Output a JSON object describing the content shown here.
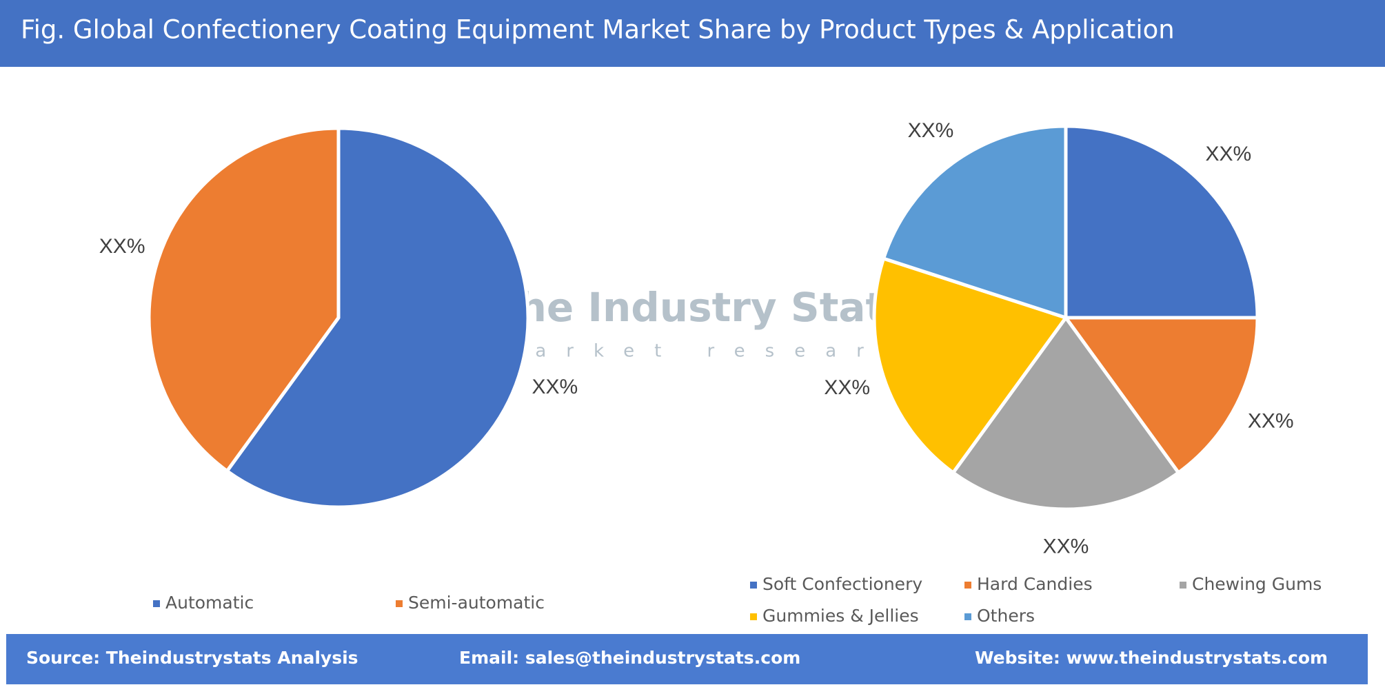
{
  "header": {
    "title": "Fig. Global Confectionery Coating Equipment Market Share by Product Types & Application"
  },
  "chart_data": [
    {
      "type": "pie",
      "categories": [
        "Automatic",
        "Semi-automatic"
      ],
      "values": [
        60,
        40
      ],
      "value_labels": [
        "XX%",
        "XX%"
      ],
      "colors": [
        "#4472c4",
        "#ed7d31"
      ]
    },
    {
      "type": "pie",
      "categories": [
        "Soft Confectionery",
        "Hard Candies",
        "Chewing Gums",
        "Gummies & Jellies",
        "Others"
      ],
      "values": [
        25,
        15,
        20,
        20,
        20
      ],
      "value_labels": [
        "XX%",
        "XX%",
        "XX%",
        "XX%",
        "XX%"
      ],
      "colors": [
        "#4472c4",
        "#ed7d31",
        "#a5a5a5",
        "#ffc000",
        "#5b9bd5"
      ]
    }
  ],
  "watermark": {
    "title": "The Industry Stats",
    "subtitle": "market research"
  },
  "footer": {
    "source": "Source: Theindustrystats Analysis",
    "email": "Email: sales@theindustrystats.com",
    "website": "Website: www.theindustrystats.com"
  }
}
